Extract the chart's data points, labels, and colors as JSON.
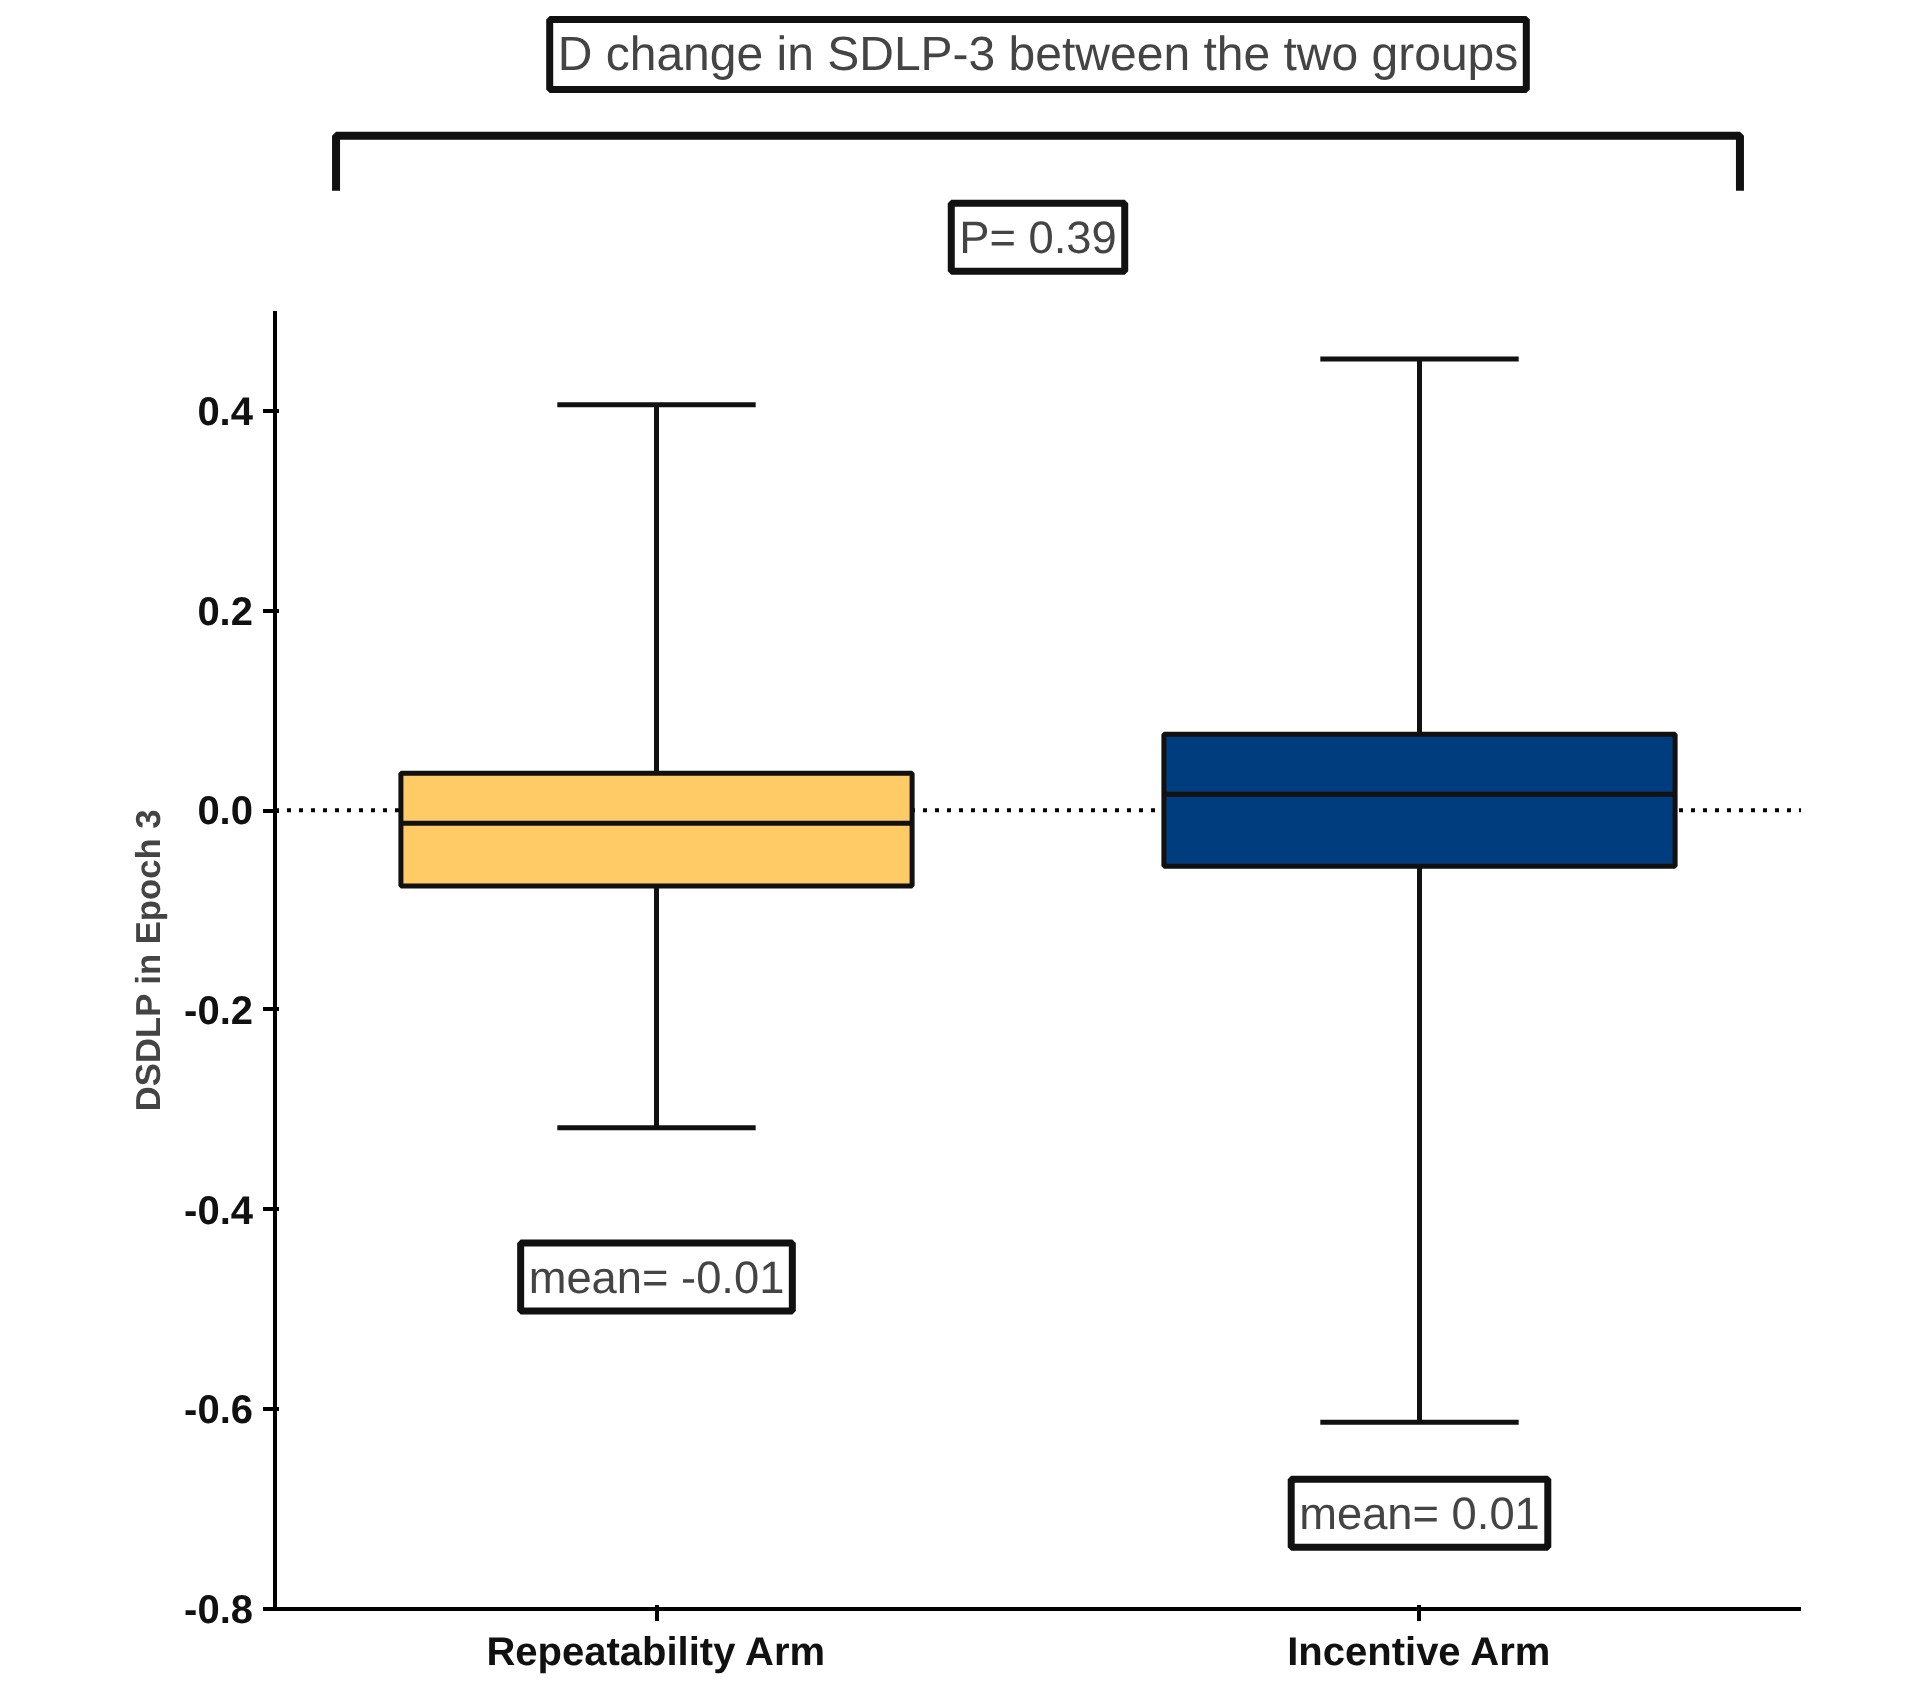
{
  "chart_data": {
    "type": "box",
    "title": "D change in SDLP-3 between the two groups",
    "ylabel": "DSDLP in Epoch 3",
    "categories": [
      "Repeatability Arm",
      "Incentive Arm"
    ],
    "colors": [
      "#fecb66",
      "#003d7e"
    ],
    "boxes": [
      {
        "low": -0.318,
        "q1": -0.076,
        "median": -0.013,
        "q3": 0.037,
        "high": 0.406
      },
      {
        "low": -0.613,
        "q1": -0.056,
        "median": 0.016,
        "q3": 0.076,
        "high": 0.452
      }
    ],
    "ylim": [
      -0.8,
      0.5
    ],
    "yticks": [
      {
        "value": -0.8,
        "label": "-0.8"
      },
      {
        "value": -0.6,
        "label": "-0.6"
      },
      {
        "value": -0.4,
        "label": "-0.4"
      },
      {
        "value": -0.2,
        "label": "-0.2"
      },
      {
        "value": 0,
        "label": "0.0"
      },
      {
        "value": 0.2,
        "label": "0.2"
      },
      {
        "value": 0.4,
        "label": "0.4"
      }
    ],
    "ref_lines": [
      {
        "axis": "y",
        "value": 0,
        "line_style": "dotted",
        "color": "#000000"
      }
    ],
    "annotations": [
      "P= 0.39",
      "mean= -0.01",
      "mean= 0.01"
    ]
  }
}
